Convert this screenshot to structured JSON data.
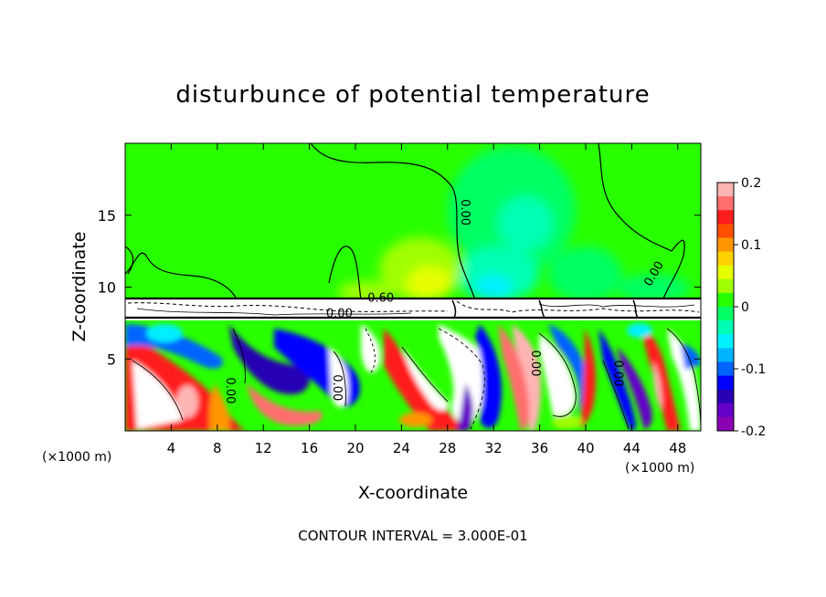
{
  "chart_data": {
    "type": "heatmap",
    "title": "disturbunce of potential temperature",
    "xlabel": "X-coordinate",
    "ylabel": "Z-coordinate",
    "x_unit_left": "(×1000 m)",
    "x_unit_right": "(×1000 m)",
    "x_ticks": [
      4,
      8,
      12,
      16,
      20,
      24,
      28,
      32,
      36,
      40,
      44,
      48
    ],
    "y_ticks": [
      5,
      10,
      15
    ],
    "xlim": [
      0,
      50
    ],
    "ylim": [
      0,
      20
    ],
    "colorbar": {
      "ticks": [
        "0.2",
        "0.1",
        "0",
        "-0.1",
        "-0.2"
      ],
      "tick_values": [
        0.2,
        0.1,
        0,
        -0.1,
        -0.2
      ],
      "range": [
        -0.2,
        0.2
      ],
      "colors": [
        "#ffb4b4",
        "#ff6e6e",
        "#ff1e1e",
        "#ff5000",
        "#ff9600",
        "#ffd200",
        "#e6ff00",
        "#a0ff00",
        "#28ff00",
        "#00ff64",
        "#00ffb4",
        "#00f0ff",
        "#00b4ff",
        "#0064ff",
        "#0000ff",
        "#2800b4",
        "#6400c8",
        "#8c00b4"
      ]
    },
    "contour_labels": [
      {
        "text": "0.00",
        "x": 29.2,
        "z": 15.2,
        "rotate": 90
      },
      {
        "text": "0.00",
        "x": 46.2,
        "z": 10.8,
        "rotate": -60
      },
      {
        "text": "0.60",
        "x": 22.2,
        "z": 9.0,
        "rotate": 0
      },
      {
        "text": "0.00",
        "x": 18.6,
        "z": 7.9,
        "rotate": 0
      },
      {
        "text": "0.00",
        "x": 8.8,
        "z": 2.8,
        "rotate": 90
      },
      {
        "text": "0.00",
        "x": 18.1,
        "z": 3.0,
        "rotate": 90
      },
      {
        "text": "0.00",
        "x": 35.3,
        "z": 4.7,
        "rotate": 90
      },
      {
        "text": "0.00",
        "x": 42.5,
        "z": 4.0,
        "rotate": 90
      }
    ],
    "footer": "CONTOUR INTERVAL = 3.000E-01",
    "grid": false
  }
}
